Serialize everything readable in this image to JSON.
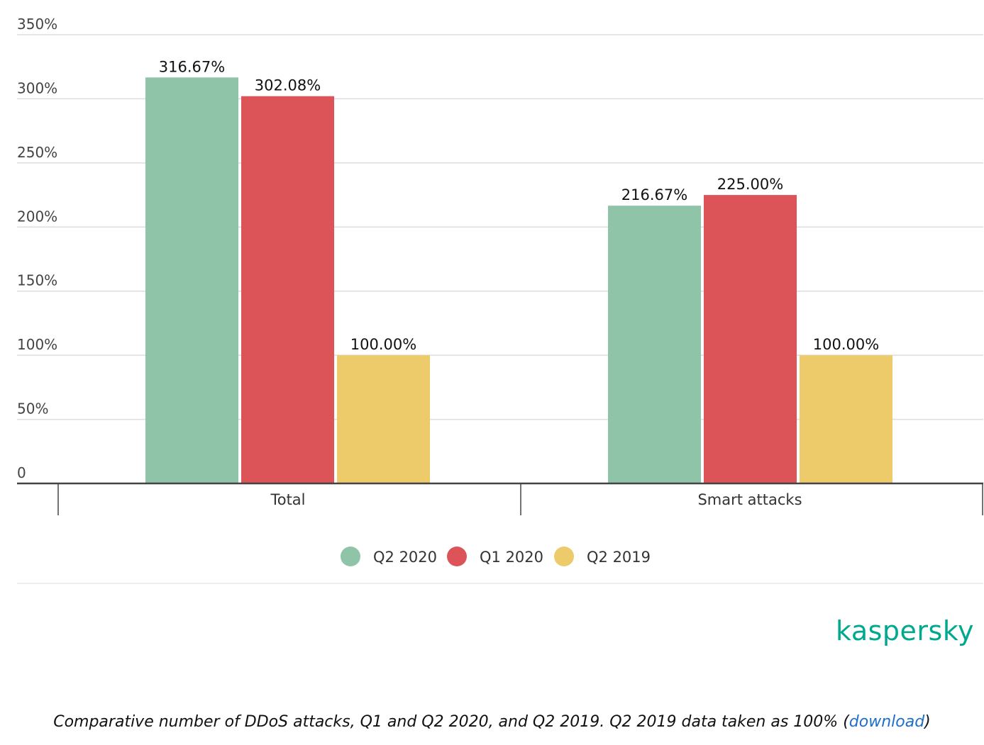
{
  "chart_data": {
    "type": "bar",
    "categories": [
      "Total",
      "Smart attacks"
    ],
    "series": [
      {
        "name": "Q2 2020",
        "color": "#8fc4a8",
        "values": [
          316.67,
          216.67
        ],
        "labels": [
          "316.67%",
          "216.67%"
        ]
      },
      {
        "name": "Q1 2020",
        "color": "#dc5457",
        "values": [
          302.08,
          225.0
        ],
        "labels": [
          "302.08%",
          "225.00%"
        ]
      },
      {
        "name": "Q2 2019",
        "color": "#edcb6b",
        "values": [
          100.0,
          100.0
        ],
        "labels": [
          "100.00%",
          "100.00%"
        ]
      }
    ],
    "yticks": [
      0,
      50,
      100,
      150,
      200,
      250,
      300,
      350
    ],
    "ytick_labels": [
      "0",
      "50%",
      "100%",
      "150%",
      "200%",
      "250%",
      "300%",
      "350%"
    ],
    "ylim": [
      0,
      350
    ],
    "grid": true,
    "legend_position": "bottom-center"
  },
  "brand": "kaspersky",
  "caption": {
    "text": "Comparative number of DDoS attacks, Q1 and Q2 2020, and Q2 2019. Q2 2019 data taken as 100% (",
    "link": "download",
    "close": ")"
  }
}
